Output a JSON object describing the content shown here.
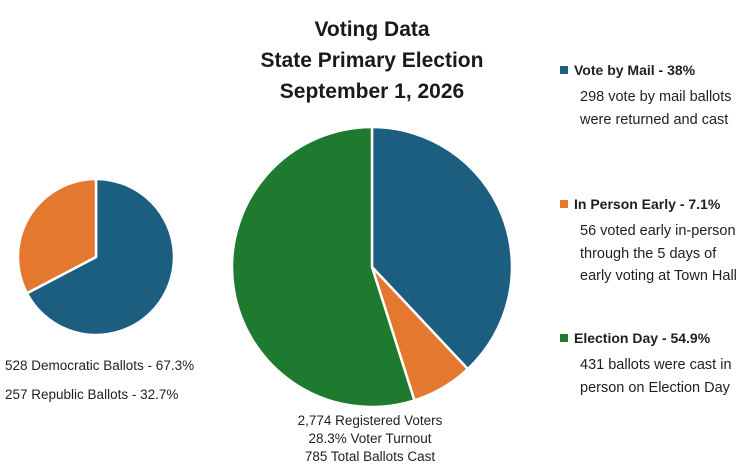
{
  "title": {
    "line1": "Voting Data",
    "line2": "State Primary Election",
    "line3": "September 1, 2026"
  },
  "colors": {
    "mail_blue": "#1b5e80",
    "early_orange": "#e4782f",
    "election_green": "#1e7a2e"
  },
  "chart_data": [
    {
      "type": "pie",
      "slices": [
        {
          "label": "528 Democratic Ballots - 67.3%",
          "value": 67.3,
          "count": 528,
          "color": "#1b5e80"
        },
        {
          "label": "257 Republic Ballots - 32.7%",
          "value": 32.7,
          "count": 257,
          "color": "#e4782f"
        }
      ]
    },
    {
      "type": "pie",
      "slices": [
        {
          "label": "Vote by Mail - 38%",
          "value": 38,
          "count": 298,
          "color": "#1b5e80",
          "description": "298 vote by mail ballots were returned and cast"
        },
        {
          "label": "In Person Early - 7.1%",
          "value": 7.1,
          "count": 56,
          "color": "#e4782f",
          "description": "56 voted early in-person through the 5 days of early voting at Town Hall"
        },
        {
          "label": "Election Day - 54.9%",
          "value": 54.9,
          "count": 431,
          "color": "#1e7a2e",
          "description": "431 ballots were cast in person on Election Day"
        }
      ],
      "stats": [
        "2,774 Registered Voters",
        "28.3% Voter Turnout",
        "785 Total Ballots Cast"
      ]
    }
  ]
}
